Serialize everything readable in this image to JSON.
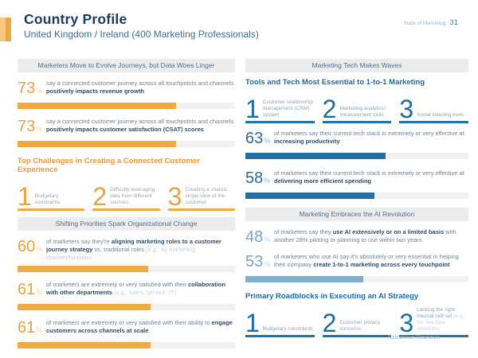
{
  "percent_sign": "%",
  "colors": {
    "accent_orange": "#F0A843",
    "accent_blue": "#2270A4",
    "accent_lightblue": "#7FAECE",
    "navy_title": "#1B3A5F",
    "steel_header": "#4E708E",
    "body_text": "#6F8191",
    "bold_text": "#2F4B66",
    "faint_text": "#C6D0D9",
    "bar_track": "#F1F1F1",
    "section_bar_bg": "#ECECEC"
  },
  "header": {
    "title": "Country Profile",
    "subtitle": "United Kingdom / Ireland (400 Marketing Professionals)",
    "report_name": "State of Marketing",
    "page_number": "31"
  },
  "footer": {
    "credit": "Salesforce Research"
  },
  "left": {
    "header1": "Marketers Move to Evolve Journeys, but Data Woes Linger",
    "stats1": [
      {
        "n": "73",
        "pct": 73,
        "pre": "say a connected customer journey across all touchpoints and channels ",
        "bold": "positively impacts revenue growth",
        "post": "",
        "light": ""
      },
      {
        "n": "73",
        "pct": 73,
        "pre": "say a connected customer journey across all touchpoints and channels ",
        "bold": "positively impacts customer satisfaction (CSAT) scores",
        "post": "",
        "light": ""
      }
    ],
    "challenges": {
      "heading": "Top Challenges in Creating a Connected Customer Experience",
      "items": [
        {
          "rank": "1",
          "label": "Budgetary constraints",
          "light": ""
        },
        {
          "rank": "2",
          "label": "Difficulty leveraging data from different sources",
          "light": ""
        },
        {
          "rank": "3",
          "label": "Creating a shared, single view of the customer",
          "light": ""
        }
      ]
    },
    "header2": "Shifting Priorities Spark Organizational Change",
    "stats2": [
      {
        "n": "60",
        "pct": 60,
        "pre": "of marketers say they're ",
        "bold": "aligning marketing roles to a customer journey strategy",
        "post": " vs. traditional roles ",
        "light": "(e.g., by marketing channel/function)"
      },
      {
        "n": "61",
        "pct": 61,
        "pre": "of marketers are extremely or very satisfied with their ",
        "bold": "collaboration with other departments",
        "post": " ",
        "light": "(e.g., sales, service, IT)"
      },
      {
        "n": "61",
        "pct": 61,
        "pre": "of marketers are extremely or very satisfied with their ability to ",
        "bold": "engage customers across channels at scale",
        "post": "",
        "light": ""
      }
    ]
  },
  "right": {
    "header1": "Marketing Tech Makes Waves",
    "tools": {
      "heading": "Tools and Tech Most Essential to 1-to-1 Marketing",
      "items": [
        {
          "rank": "1",
          "label": "Customer relationship management (CRM) system",
          "light": ""
        },
        {
          "rank": "2",
          "label": "Marketing analytics/ measurement tools",
          "light": ""
        },
        {
          "rank": "3",
          "label": "Social listening tools",
          "light": ""
        }
      ]
    },
    "stats1": [
      {
        "n": "63",
        "pct": 63,
        "pre": "of marketers say their current tech stack is extremely or very effective at ",
        "bold": "increasing productivity",
        "post": "",
        "light": ""
      },
      {
        "n": "58",
        "pct": 58,
        "pre": "of marketers say their current tech stack is extremely or very effective at ",
        "bold": "delivering more efficient spending",
        "post": "",
        "light": ""
      }
    ],
    "header2": "Marketing Embraces the AI Revolution",
    "stats2": [
      {
        "n": "48",
        "pct": 48,
        "pre": "of marketers say they ",
        "bold": "use AI extensively or on a limited basis",
        "post": " with another 28% piloting or planning to use within two years",
        "light": ""
      },
      {
        "n": "53",
        "pct": 53,
        "pre": "of marketers who use AI say it's absolutely or very essential in helping their company ",
        "bold": "create 1-to-1 marketing across every touchpoint",
        "post": "",
        "light": ""
      }
    ],
    "roadblocks": {
      "heading": "Primary Roadblocks in Executing an AI Strategy",
      "items": [
        {
          "rank": "1",
          "label": "Budgetary constraints",
          "light": ""
        },
        {
          "rank": "2",
          "label": "Customer privacy concerns",
          "light": ""
        },
        {
          "rank": "3",
          "label": "Lacking the right internal skill set ",
          "light": "(e.g., too few data scientists)"
        }
      ]
    }
  }
}
